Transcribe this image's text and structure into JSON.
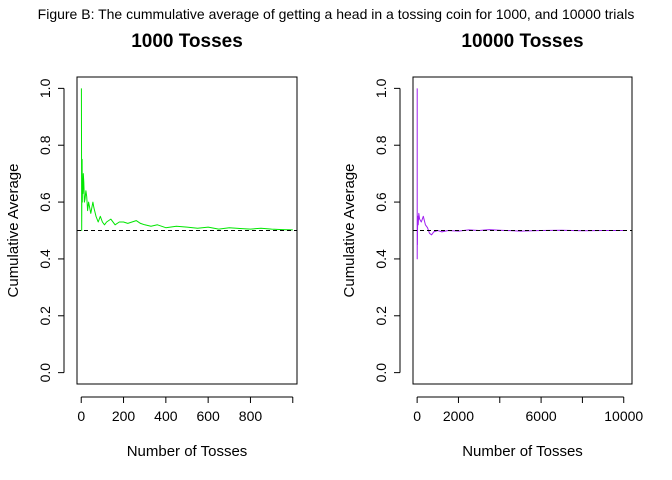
{
  "figure_caption": "Figure B: The cummulative average of getting a head in a tossing coin for 1000, and 10000 trials",
  "chart_data": [
    {
      "type": "line",
      "title": "1000 Tosses",
      "xlabel": "Number of Tosses",
      "ylabel": "Cumulative Average",
      "xlim": [
        -20,
        1020
      ],
      "ylim": [
        -0.04,
        1.04
      ],
      "xticks": [
        0,
        200,
        400,
        600,
        800,
        1000
      ],
      "xtick_labels": [
        "0",
        "200",
        "400",
        "600",
        "800",
        ""
      ],
      "yticks": [
        0,
        0.2,
        0.4,
        0.6,
        0.8,
        1.0
      ],
      "ytick_labels": [
        "0.0",
        "0.2",
        "0.4",
        "0.6",
        "0.8",
        "1.0"
      ],
      "grid": false,
      "reference_line": {
        "y": 0.5,
        "style": "dashed",
        "color": "#000000"
      },
      "series": [
        {
          "color": "#00e600",
          "x": [
            1,
            2,
            3,
            4,
            5,
            6,
            8,
            10,
            12,
            15,
            18,
            22,
            26,
            30,
            35,
            40,
            45,
            50,
            55,
            60,
            70,
            80,
            90,
            100,
            110,
            120,
            140,
            160,
            180,
            200,
            220,
            240,
            260,
            280,
            300,
            330,
            360,
            400,
            450,
            500,
            550,
            600,
            650,
            700,
            750,
            800,
            850,
            900,
            950,
            1000
          ],
          "y": [
            1.0,
            0.5,
            0.67,
            0.75,
            0.6,
            0.67,
            0.63,
            0.7,
            0.67,
            0.6,
            0.61,
            0.64,
            0.62,
            0.57,
            0.6,
            0.58,
            0.56,
            0.58,
            0.6,
            0.58,
            0.55,
            0.53,
            0.55,
            0.53,
            0.52,
            0.53,
            0.54,
            0.52,
            0.53,
            0.53,
            0.525,
            0.53,
            0.535,
            0.525,
            0.52,
            0.515,
            0.52,
            0.51,
            0.515,
            0.512,
            0.508,
            0.512,
            0.505,
            0.51,
            0.507,
            0.505,
            0.508,
            0.505,
            0.503,
            0.502
          ]
        }
      ]
    },
    {
      "type": "line",
      "title": "10000 Tosses",
      "xlabel": "Number of Tosses",
      "ylabel": "Cumulative Average",
      "xlim": [
        -200,
        10400
      ],
      "ylim": [
        -0.04,
        1.04
      ],
      "xticks": [
        0,
        2000,
        4000,
        6000,
        8000,
        10000
      ],
      "xtick_labels": [
        "0",
        "2000",
        "",
        "6000",
        "",
        "10000"
      ],
      "yticks": [
        0,
        0.2,
        0.4,
        0.6,
        0.8,
        1.0
      ],
      "ytick_labels": [
        "0.0",
        "0.2",
        "0.4",
        "0.6",
        "0.8",
        "1.0"
      ],
      "grid": false,
      "reference_line": {
        "y": 0.5,
        "style": "dashed",
        "color": "#000000"
      },
      "series": [
        {
          "color": "#a020f0",
          "x": [
            1,
            2,
            3,
            5,
            8,
            12,
            20,
            30,
            50,
            80,
            120,
            200,
            300,
            400,
            500,
            600,
            700,
            800,
            1000,
            1200,
            1500,
            2000,
            2500,
            3000,
            3500,
            4000,
            5000,
            6000,
            7000,
            8000,
            9000,
            10000
          ],
          "y": [
            1.0,
            0.5,
            0.67,
            0.4,
            0.5,
            0.45,
            0.5,
            0.55,
            0.52,
            0.56,
            0.54,
            0.53,
            0.55,
            0.52,
            0.51,
            0.49,
            0.485,
            0.495,
            0.5,
            0.495,
            0.5,
            0.498,
            0.502,
            0.5,
            0.503,
            0.501,
            0.498,
            0.5,
            0.501,
            0.499,
            0.5,
            0.5
          ]
        }
      ]
    }
  ]
}
